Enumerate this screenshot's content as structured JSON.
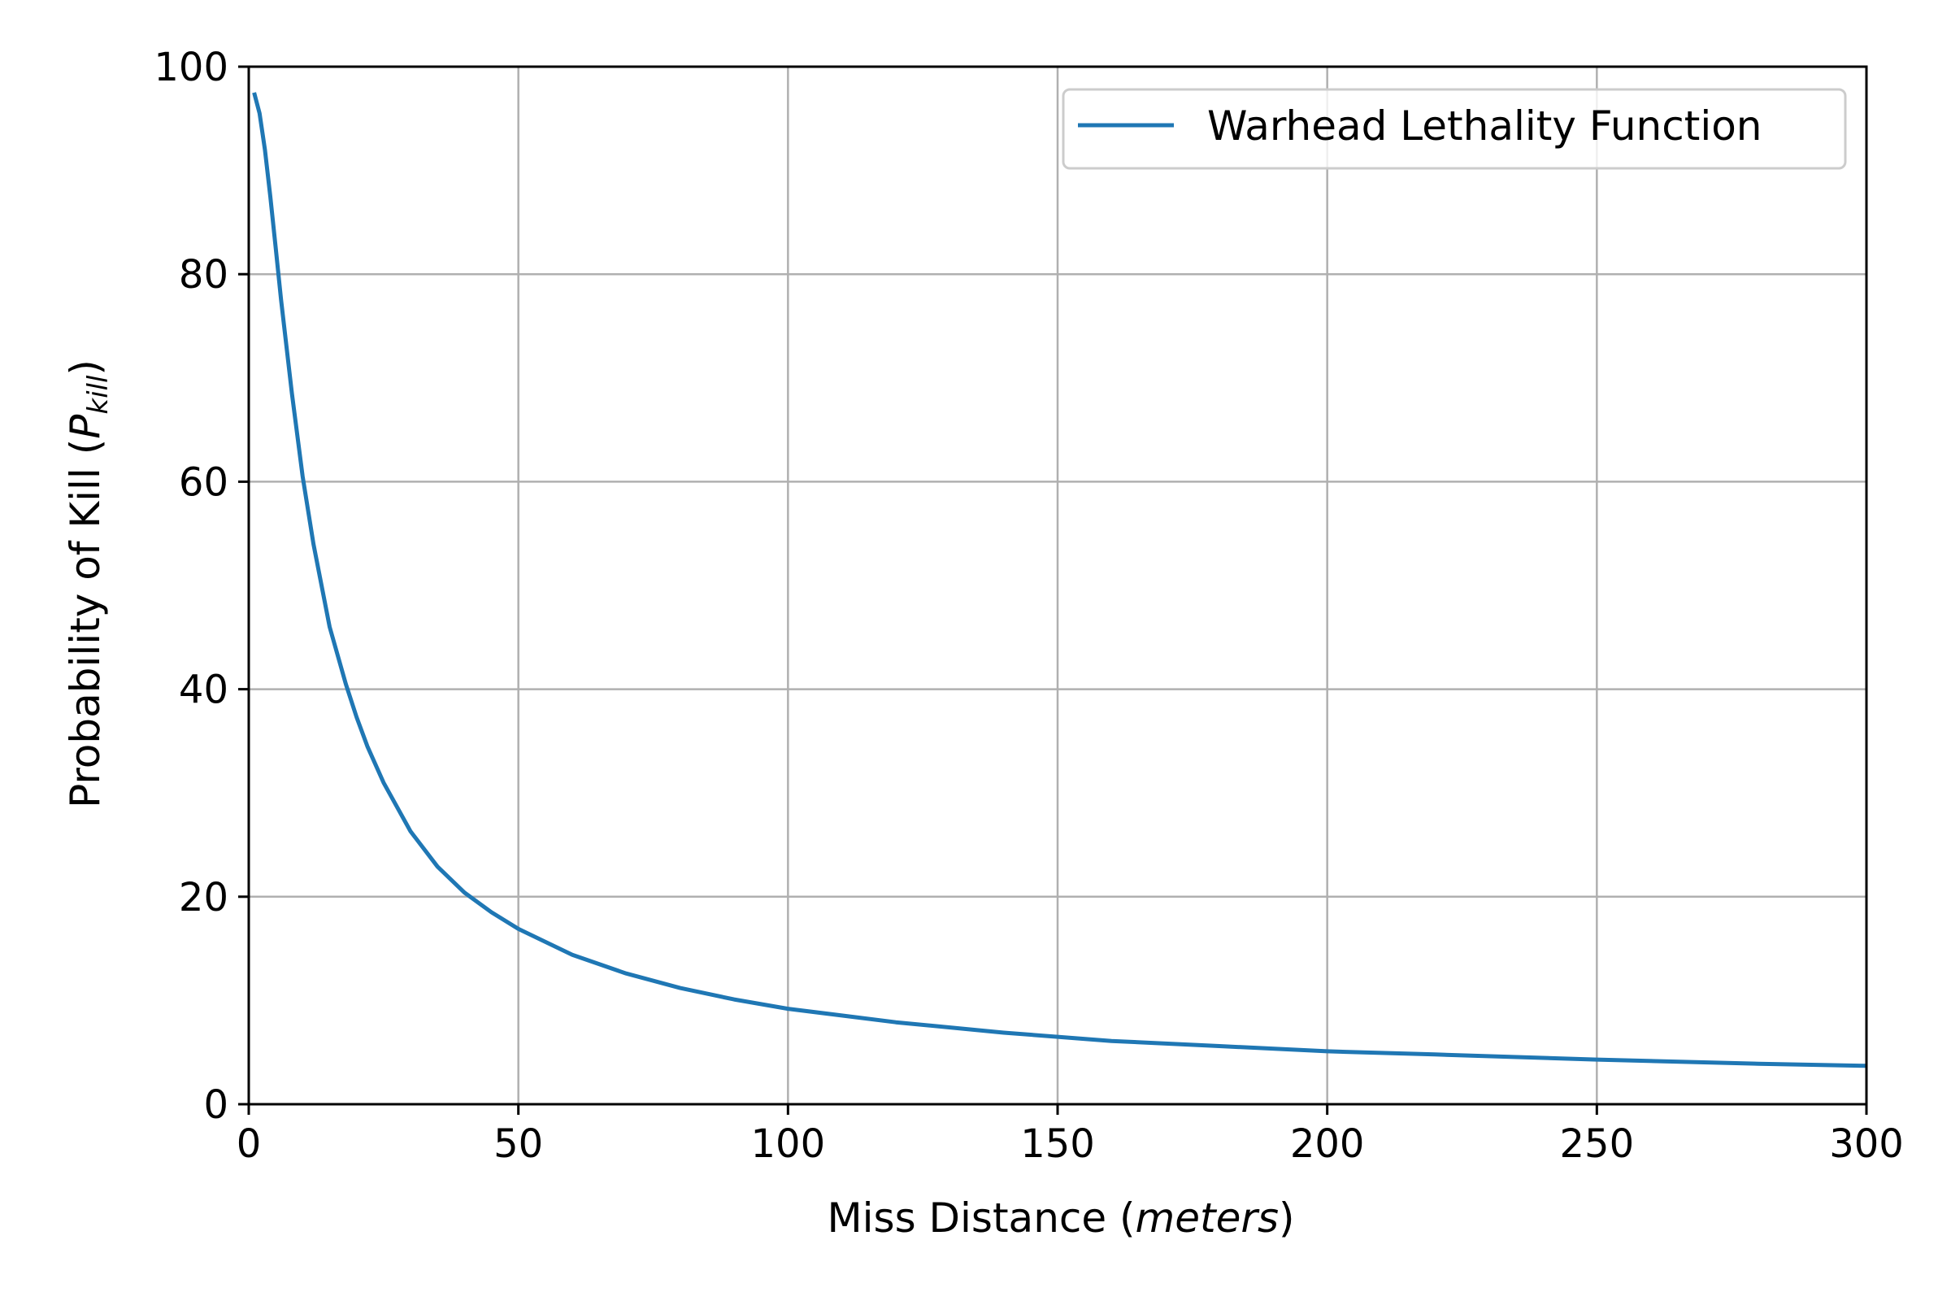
{
  "chart_data": {
    "type": "line",
    "xlabel": {
      "prefix": "Miss Distance (",
      "italic": "meters",
      "suffix": ")"
    },
    "ylabel": {
      "prefix": "Probability of Kill (",
      "italic_main": "P",
      "italic_sub": "kill",
      "suffix": ")"
    },
    "xlim": [
      0,
      300
    ],
    "ylim": [
      0,
      100
    ],
    "xticks": [
      0,
      50,
      100,
      150,
      200,
      250,
      300
    ],
    "yticks": [
      0,
      20,
      40,
      60,
      80,
      100
    ],
    "xtick_labels": [
      "0",
      "50",
      "100",
      "150",
      "200",
      "250",
      "300"
    ],
    "ytick_labels": [
      "0",
      "20",
      "40",
      "60",
      "80",
      "100"
    ],
    "grid": true,
    "legend_placement": "top-right",
    "series": [
      {
        "name": "Warhead Lethality Function",
        "color": "#1f77b4",
        "x": [
          1,
          2,
          3,
          4,
          5,
          6,
          8,
          10,
          12,
          15,
          18,
          20,
          22,
          25,
          30,
          35,
          40,
          45,
          50,
          60,
          70,
          80,
          90,
          100,
          120,
          140,
          150,
          160,
          180,
          200,
          220,
          250,
          280,
          300
        ],
        "y": [
          97.5,
          95.5,
          92.0,
          87.5,
          82.5,
          77.5,
          68.5,
          60.5,
          54.0,
          46.0,
          40.5,
          37.3,
          34.5,
          31.0,
          26.3,
          22.9,
          20.4,
          18.5,
          16.9,
          14.4,
          12.6,
          11.2,
          10.1,
          9.2,
          7.9,
          6.9,
          6.5,
          6.1,
          5.6,
          5.1,
          4.8,
          4.3,
          3.9,
          3.7
        ]
      }
    ]
  }
}
